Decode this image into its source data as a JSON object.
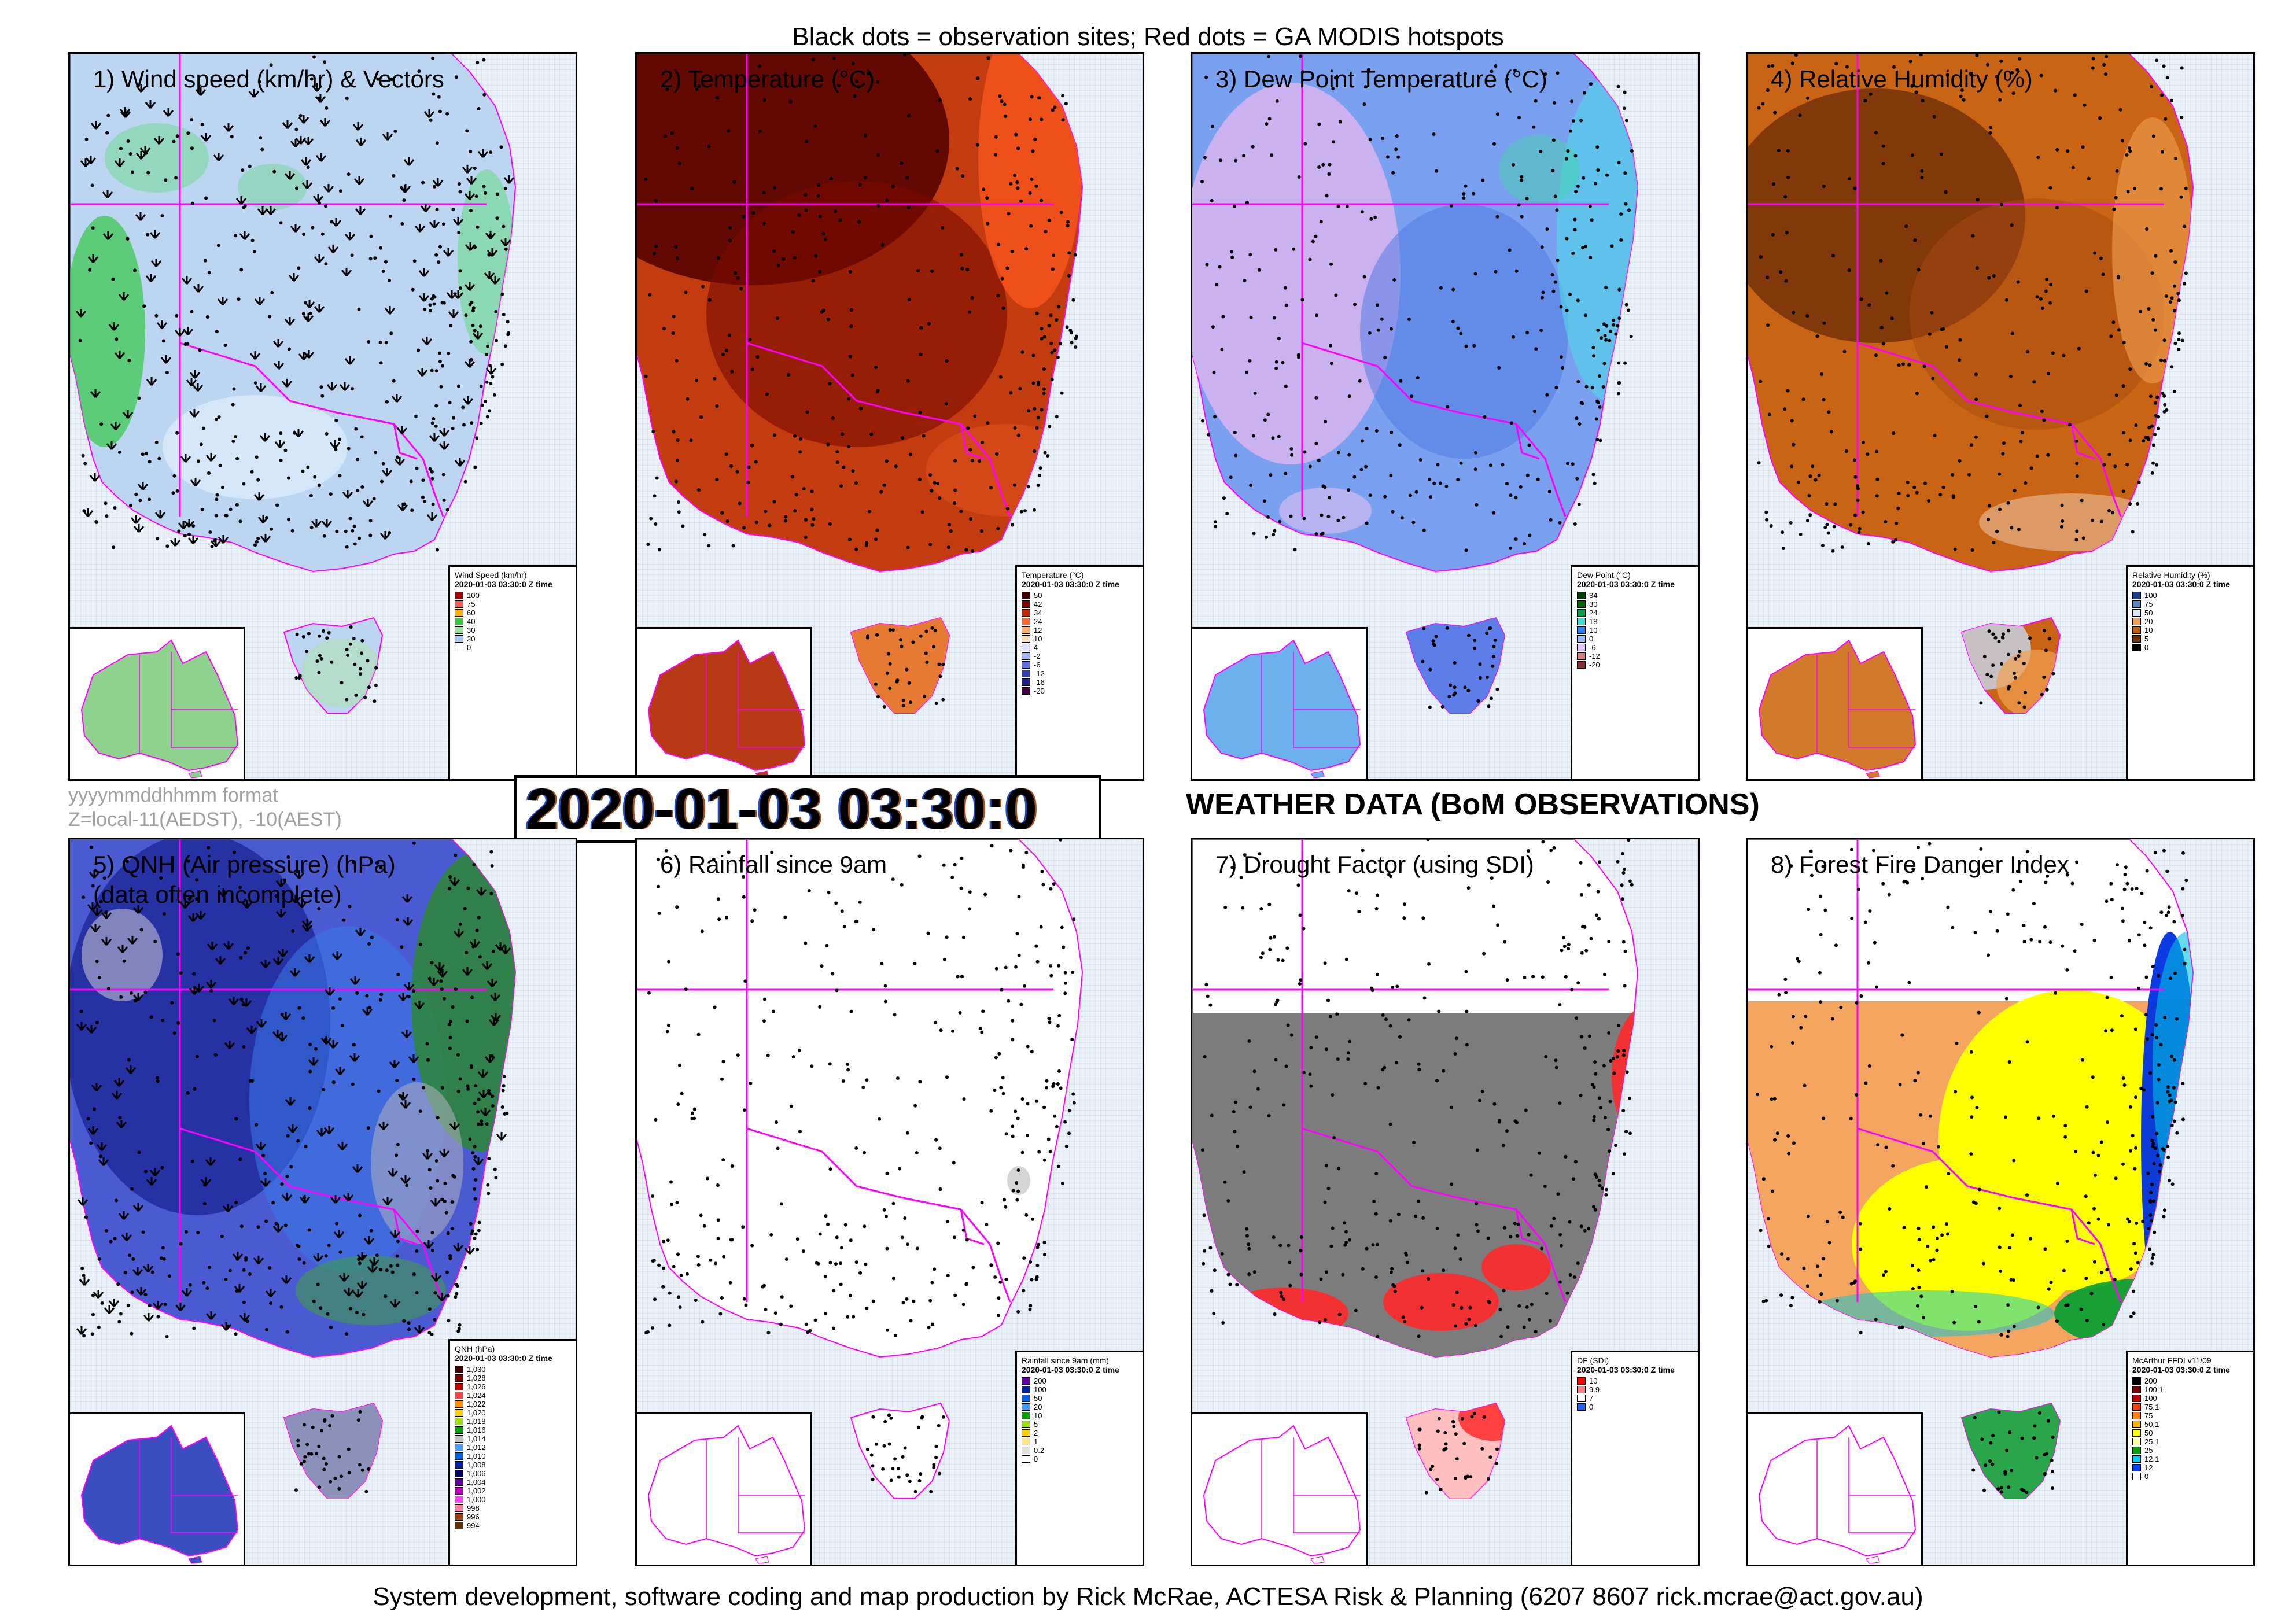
{
  "header": "Black dots = observation sites; Red dots = GA MODIS hotspots",
  "format_note": {
    "line1": "yyyymmddhhmm format",
    "line2": "Z=local-11(AEDST), -10(AEST)"
  },
  "timestamp": "2020-01-03 03:30:0",
  "weather_title": "WEATHER DATA (BoM OBSERVATIONS)",
  "footer": "System development, software coding and map production by Rick McRae, ACTESA Risk & Planning (6207 8607 rick.mcrae@act.gov.au)",
  "panels": [
    {
      "id": "wind",
      "title": "1) Wind speed (km/hr) & Vectors",
      "title2": "",
      "fill": "wind",
      "land": "#bcd6f2",
      "inset_land": "#8ed28e",
      "legend": {
        "title": "Wind Speed (km/hr)",
        "time": "2020-01-03 03:30:0 Z time",
        "rows": [
          {
            "label": "100",
            "color": "#a80000"
          },
          {
            "label": "75",
            "color": "#ff5a5a"
          },
          {
            "label": "60",
            "color": "#ffb000"
          },
          {
            "label": "40",
            "color": "#32c832"
          },
          {
            "label": "30",
            "color": "#9ee09e"
          },
          {
            "label": "20",
            "color": "#a8c8f0"
          },
          {
            "label": "0",
            "color": "#ffffff"
          }
        ]
      }
    },
    {
      "id": "temp",
      "title": "2) Temperature (°C)",
      "title2": "",
      "fill": "temp",
      "land": "#c23c10",
      "inset_land": "#b73a14",
      "legend": {
        "title": "Temperature (°C)",
        "time": "2020-01-03 03:30:0 Z time",
        "rows": [
          {
            "label": "50",
            "color": "#3c0000"
          },
          {
            "label": "42",
            "color": "#780000"
          },
          {
            "label": "34",
            "color": "#c02800"
          },
          {
            "label": "24",
            "color": "#ff6a2a"
          },
          {
            "label": "12",
            "color": "#ffb070"
          },
          {
            "label": "10",
            "color": "#ffe0c0"
          },
          {
            "label": "4",
            "color": "#e0e0ff"
          },
          {
            "label": "-2",
            "color": "#a8b8ff"
          },
          {
            "label": "-6",
            "color": "#6070e0"
          },
          {
            "label": "-12",
            "color": "#3040b0"
          },
          {
            "label": "-16",
            "color": "#202080"
          },
          {
            "label": "-20",
            "color": "#400040"
          }
        ]
      }
    },
    {
      "id": "dew",
      "title": "3) Dew Point Temperature (°C)",
      "title2": "",
      "fill": "dew",
      "land": "#7aa0f0",
      "inset_land": "#6cb0ee",
      "legend": {
        "title": "Dew Point (°C)",
        "time": "2020-01-03 03:30:0 Z time",
        "rows": [
          {
            "label": "34",
            "color": "#003c00"
          },
          {
            "label": "30",
            "color": "#006400"
          },
          {
            "label": "24",
            "color": "#00a050"
          },
          {
            "label": "18",
            "color": "#40e0d0"
          },
          {
            "label": "10",
            "color": "#3080f0"
          },
          {
            "label": "0",
            "color": "#a0b8ff"
          },
          {
            "label": "-6",
            "color": "#e0c8ff"
          },
          {
            "label": "-12",
            "color": "#d08080"
          },
          {
            "label": "-20",
            "color": "#803030"
          }
        ]
      }
    },
    {
      "id": "rh",
      "title": "4) Relative Humidity (%)",
      "title2": "",
      "fill": "rh",
      "land": "#c86414",
      "inset_land": "#d07a2a",
      "legend": {
        "title": "Relative Humidity (%)",
        "time": "2020-01-03 03:30:0 Z time",
        "rows": [
          {
            "label": "100",
            "color": "#1c3c8c"
          },
          {
            "label": "75",
            "color": "#5a86c8"
          },
          {
            "label": "50",
            "color": "#dde8f4"
          },
          {
            "label": "20",
            "color": "#f0a050"
          },
          {
            "label": "10",
            "color": "#c06010"
          },
          {
            "label": "5",
            "color": "#703000"
          },
          {
            "label": "0",
            "color": "#000000"
          }
        ]
      }
    },
    {
      "id": "qnh",
      "title": "5) QNH (Air pressure) (hPa)",
      "title2": "(data often incomplete)",
      "fill": "qnh",
      "land": "#4a5ad0",
      "inset_land": "#3a4ec0",
      "legend": {
        "title": "QNH (hPa)",
        "time": "2020-01-03 03:30:0 Z time",
        "rows": [
          {
            "label": "1,030",
            "color": "#3c0000"
          },
          {
            "label": "1,028",
            "color": "#800000"
          },
          {
            "label": "1,026",
            "color": "#c00000"
          },
          {
            "label": "1,024",
            "color": "#ff4040"
          },
          {
            "label": "1,022",
            "color": "#ff9000"
          },
          {
            "label": "1,020",
            "color": "#ffd000"
          },
          {
            "label": "1,018",
            "color": "#a0e000"
          },
          {
            "label": "1,016",
            "color": "#00a000"
          },
          {
            "label": "1,014",
            "color": "#c0c0c0"
          },
          {
            "label": "1,012",
            "color": "#40a0ff"
          },
          {
            "label": "1,010",
            "color": "#0060e0"
          },
          {
            "label": "1,008",
            "color": "#0020a0"
          },
          {
            "label": "1,006",
            "color": "#000060"
          },
          {
            "label": "1,004",
            "color": "#6000a0"
          },
          {
            "label": "1,002",
            "color": "#c000c0"
          },
          {
            "label": "1,000",
            "color": "#ff40ff"
          },
          {
            "label": "998",
            "color": "#ff80a0"
          },
          {
            "label": "996",
            "color": "#a04000"
          },
          {
            "label": "994",
            "color": "#603000"
          }
        ]
      }
    },
    {
      "id": "rain",
      "title": "6) Rainfall since 9am",
      "title2": "",
      "fill": "rain",
      "land": "#ffffff",
      "inset_land": "#ffffff",
      "legend": {
        "title": "Rainfall since 9am (mm)",
        "time": "2020-01-03 03:30:0 Z time",
        "rows": [
          {
            "label": "200",
            "color": "#6000a0"
          },
          {
            "label": "100",
            "color": "#0020a0"
          },
          {
            "label": "50",
            "color": "#0060e0"
          },
          {
            "label": "20",
            "color": "#40a0ff"
          },
          {
            "label": "10",
            "color": "#00a000"
          },
          {
            "label": "5",
            "color": "#a0e000"
          },
          {
            "label": "2",
            "color": "#ffd000"
          },
          {
            "label": "1",
            "color": "#ffe880"
          },
          {
            "label": "0.2",
            "color": "#e0e0e0"
          },
          {
            "label": "0",
            "color": "#ffffff"
          }
        ]
      }
    },
    {
      "id": "drought",
      "title": "7) Drought Factor (using SDI)",
      "title2": "",
      "fill": "drought",
      "land": "#ffffff",
      "inset_land": "#ffffff",
      "legend": {
        "title": "DF (SDI)",
        "time": "2020-01-03 03:30:0 Z time",
        "rows": [
          {
            "label": "10",
            "color": "#ff0000"
          },
          {
            "label": "9.9",
            "color": "#ff8080"
          },
          {
            "label": "7",
            "color": "#ffffff"
          },
          {
            "label": "0",
            "color": "#2060ff"
          }
        ]
      }
    },
    {
      "id": "ffdi",
      "title": "8) Forest Fire Danger Index",
      "title2": "",
      "fill": "ffdi",
      "land": "#ffffff",
      "inset_land": "#ffffff",
      "legend": {
        "title": "McArthur FFDI v11/09",
        "time": "2020-01-03 03:30:0 Z time",
        "rows": [
          {
            "label": "200",
            "color": "#000000"
          },
          {
            "label": "100.1",
            "color": "#800000"
          },
          {
            "label": "100",
            "color": "#c00000"
          },
          {
            "label": "75.1",
            "color": "#ff4000"
          },
          {
            "label": "75",
            "color": "#ff8000"
          },
          {
            "label": "50.1",
            "color": "#ffb000"
          },
          {
            "label": "50",
            "color": "#ffff00"
          },
          {
            "label": "25.1",
            "color": "#ffffa0"
          },
          {
            "label": "25",
            "color": "#00a000"
          },
          {
            "label": "12.1",
            "color": "#00d0ff"
          },
          {
            "label": "12",
            "color": "#0040ff"
          },
          {
            "label": "0",
            "color": "#ffffff"
          }
        ]
      }
    }
  ]
}
